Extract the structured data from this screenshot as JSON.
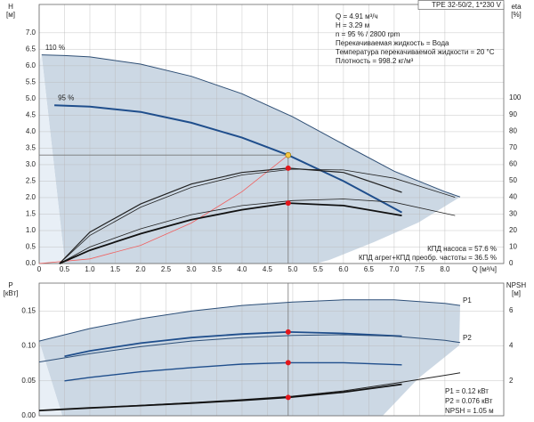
{
  "chart_data": [
    {
      "type": "line",
      "title": "TPE 32-50/2, 1*230 V",
      "x_label": "Q [м³/ч]",
      "y_label": "H",
      "y_unit": "[м]",
      "y2_label": "eta",
      "y2_unit": "[%]",
      "annotations": [
        "Q = 4.91 м³/ч",
        "H = 3.29 м",
        "n = 95 % / 2800 rpm",
        "Перекачиваемая жидкость = Вода",
        "Температура перекачиваемой жидкости = 20 °C",
        "Плотность = 998.2 кг/м³"
      ],
      "xlim": [
        0,
        9.16
      ],
      "xticks": [
        0,
        0.5,
        {
          "value": 1,
          "label": "1.0"
        },
        1.5,
        {
          "value": 2,
          "label": "2.0"
        },
        2.5,
        {
          "value": 3,
          "label": "3.0"
        },
        3.5,
        {
          "value": 4,
          "label": "4.0"
        },
        4.5,
        {
          "value": 5,
          "label": "5.0"
        },
        5.5,
        {
          "value": 6,
          "label": "6.0"
        },
        6.5,
        {
          "value": 7,
          "label": "7.0"
        },
        7.5,
        {
          "value": 8,
          "label": "8.0"
        }
      ],
      "ylim": [
        0,
        7.86
      ],
      "yticks": [
        {
          "value": 0,
          "label": "0.0"
        },
        0.5,
        {
          "value": 1,
          "label": "1.0"
        },
        1.5,
        {
          "value": 2,
          "label": "2.0"
        },
        2.5,
        {
          "value": 3,
          "label": "3.0"
        },
        3.5,
        {
          "value": 4,
          "label": "4.0"
        },
        4.5,
        {
          "value": 5,
          "label": "5.0"
        },
        5.5,
        {
          "value": 6,
          "label": "6.0"
        },
        6.5,
        {
          "value": 7,
          "label": "7.0"
        }
      ],
      "y2lim": [
        0,
        156.5
      ],
      "y2ticks": [
        0,
        10,
        20,
        30,
        40,
        50,
        60,
        70,
        80,
        90,
        100
      ],
      "grid": true,
      "shade": "#ccd8e4",
      "shade_light": "#e8eff6",
      "series": [
        {
          "name": "110 %",
          "color": "#2f4f75",
          "width": 1,
          "x": [
            0.05,
            0.5,
            1,
            2,
            3,
            4,
            5,
            6,
            7,
            8,
            8.3
          ],
          "values": [
            6.33,
            6.31,
            6.27,
            6.05,
            5.68,
            5.15,
            4.45,
            3.62,
            2.8,
            2.18,
            2.02
          ]
        },
        {
          "name": "95 %",
          "color": "#1f4e8c",
          "width": 2,
          "x": [
            0.3,
            1,
            2,
            3,
            4,
            4.91,
            6,
            7.15
          ],
          "values": [
            4.8,
            4.76,
            4.6,
            4.27,
            3.82,
            3.29,
            2.5,
            1.55
          ]
        },
        {
          "color": "#f06060",
          "width": 0.8,
          "x": [
            0,
            1,
            2,
            3,
            4,
            4.91
          ],
          "values": [
            0,
            0.14,
            0.55,
            1.23,
            2.18,
            3.29
          ]
        },
        {
          "color": "#222222",
          "width": 0.8,
          "axis": "y2",
          "x": [
            0.4,
            1,
            2,
            3,
            4,
            5,
            6,
            7,
            8.2
          ],
          "values": [
            0,
            17,
            34,
            46,
            53.5,
            57,
            56.5,
            51.5,
            40
          ]
        },
        {
          "color": "#222222",
          "width": 1.2,
          "axis": "y2",
          "x": [
            0.4,
            1,
            2,
            3,
            4,
            4.91,
            6,
            7.15
          ],
          "values": [
            0,
            19,
            36,
            48,
            55,
            57.6,
            55,
            43
          ]
        },
        {
          "color": "#222222",
          "width": 0.8,
          "axis": "y2",
          "x": [
            0.4,
            1,
            2,
            3,
            4,
            5,
            6,
            7,
            8.2
          ],
          "values": [
            0,
            10,
            21,
            29.5,
            35,
            38,
            39,
            37,
            29
          ]
        },
        {
          "color": "#111111",
          "width": 1.8,
          "axis": "y2",
          "x": [
            0.4,
            1,
            2,
            3,
            4,
            4.91,
            6,
            7.15
          ],
          "values": [
            0,
            8,
            18,
            26.5,
            32.5,
            36.5,
            35,
            29
          ]
        }
      ],
      "points": [
        {
          "x": 4.91,
          "y": 3.29,
          "color": "#f5c542",
          "guide": true
        },
        {
          "x": 4.91,
          "y": 57.6,
          "axis": "y2",
          "color": "#e3161b",
          "label": "КПД насоса = 57.6 %"
        },
        {
          "x": 4.91,
          "y": 36.5,
          "axis": "y2",
          "color": "#e3161b",
          "label": "КПД агрег+КПД преобр. частоты = 36.5 %"
        }
      ]
    },
    {
      "type": "line",
      "y_label": "P",
      "y_unit": "[кВт]",
      "y2_label": "NPSH",
      "y2_unit": "[м]",
      "xlim": [
        0,
        9.16
      ],
      "ylim": [
        0,
        0.19
      ],
      "yticks": [
        {
          "value": 0,
          "label": "0.00"
        },
        0.05,
        {
          "value": 0.1,
          "label": "0.10"
        },
        0.15
      ],
      "y2lim": [
        0,
        7.58
      ],
      "y2ticks": [
        2,
        4,
        6
      ],
      "grid": true,
      "shade": "#ccd8e4",
      "shade_light": "#e8eff6",
      "series": [
        {
          "name": "P1",
          "color": "#2d4f78",
          "width": 1,
          "x": [
            0,
            1,
            2,
            3,
            4,
            5,
            6,
            7,
            8,
            8.3
          ],
          "values": [
            0.107,
            0.125,
            0.139,
            0.15,
            0.158,
            0.163,
            0.166,
            0.166,
            0.161,
            0.158
          ]
        },
        {
          "color": "#1f4e8c",
          "width": 1.8,
          "x": [
            0.5,
            1,
            2,
            3,
            4,
            4.91,
            6,
            7.15
          ],
          "values": [
            0.085,
            0.093,
            0.104,
            0.112,
            0.117,
            0.12,
            0.118,
            0.114
          ]
        },
        {
          "name": "P2",
          "color": "#2d4f78",
          "width": 1,
          "x": [
            0,
            1,
            2,
            3,
            4,
            5,
            6,
            7,
            8,
            8.3
          ],
          "values": [
            0.077,
            0.089,
            0.099,
            0.107,
            0.112,
            0.115,
            0.116,
            0.114,
            0.108,
            0.105
          ]
        },
        {
          "color": "#1f4e8c",
          "width": 1.4,
          "x": [
            0.5,
            1,
            2,
            3,
            4,
            4.91,
            6,
            7.15
          ],
          "values": [
            0.05,
            0.055,
            0.063,
            0.069,
            0.074,
            0.076,
            0.076,
            0.073
          ]
        },
        {
          "color": "#222222",
          "width": 1,
          "axis": "y2",
          "x": [
            0,
            1,
            2,
            3,
            4,
            5,
            6,
            7,
            8.3
          ],
          "values": [
            0.3,
            0.45,
            0.6,
            0.75,
            0.92,
            1.12,
            1.42,
            1.85,
            2.45
          ]
        },
        {
          "color": "#111111",
          "width": 1.8,
          "axis": "y2",
          "x": [
            0,
            1,
            2,
            3,
            4,
            4.91,
            6,
            7.15
          ],
          "values": [
            0.3,
            0.45,
            0.58,
            0.72,
            0.88,
            1.05,
            1.35,
            1.8
          ]
        }
      ],
      "points": [
        {
          "x": 4.91,
          "y": 0.12,
          "color": "#e3161b",
          "guide": true,
          "label": "P1 = 0.12 кВт"
        },
        {
          "x": 4.91,
          "y": 0.076,
          "color": "#e3161b",
          "label": "P2 = 0.076 кВт"
        },
        {
          "x": 4.91,
          "y": 1.05,
          "axis": "y2",
          "color": "#e3161b",
          "label": "NPSH = 1.05 м"
        }
      ]
    }
  ]
}
